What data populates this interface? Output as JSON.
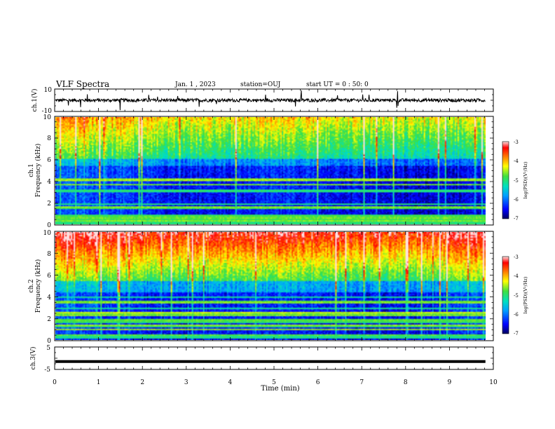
{
  "header": {
    "title": "VLF Spectra",
    "date": "Jan. 1 , 2023",
    "station": "station=OUJ",
    "start": "start UT =  0 : 50: 0"
  },
  "chart_data": [
    {
      "panel": "ch1-waveform",
      "type": "line",
      "ylabel": "ch.1(V)",
      "yticks": [
        "10",
        "-10"
      ],
      "ylim": [
        -10,
        10
      ],
      "description_level": 0,
      "noise_amplitude": 1.5
    },
    {
      "panel": "ch1-spectrogram",
      "type": "heatmap",
      "ylabel_line1": "ch.1",
      "ylabel_line2": "Frequency (kHz)",
      "yticks": [
        "0",
        "2",
        "4",
        "6",
        "8",
        "10"
      ],
      "ylim": [
        0,
        10
      ],
      "colorbar": {
        "label": "log(PSD)(V²/Hz)",
        "ticks": [
          "-3",
          "-4",
          "-5",
          "-6",
          "-7"
        ],
        "range": [
          -7,
          -3
        ]
      }
    },
    {
      "panel": "ch2-spectrogram",
      "type": "heatmap",
      "ylabel_line1": "ch.2",
      "ylabel_line2": "Frequency (kHz)",
      "yticks": [
        "0",
        "2",
        "4",
        "6",
        "8",
        "10"
      ],
      "ylim": [
        0,
        10
      ],
      "colorbar": {
        "label": "log(PSD)(V²/Hz)",
        "ticks": [
          "-3",
          "-4",
          "-5",
          "-6",
          "-7"
        ],
        "range": [
          -7,
          -3
        ]
      }
    },
    {
      "panel": "ch3-waveform",
      "type": "line",
      "ylabel": "ch.3(V)",
      "yticks": [
        "5",
        "0",
        "-5"
      ],
      "ylim": [
        -5,
        5
      ],
      "constant_level": -1.5
    }
  ],
  "xaxis": {
    "label": "Time (min)",
    "ticks": [
      "0",
      "1",
      "2",
      "3",
      "4",
      "5",
      "6",
      "7",
      "8",
      "9",
      "10"
    ],
    "range": [
      0,
      10
    ],
    "data_end": 9.82
  },
  "colors": {
    "scale": [
      "#000080",
      "#0000ff",
      "#00a0ff",
      "#00e0c0",
      "#40e040",
      "#c0ff00",
      "#ffff00",
      "#ff8000",
      "#ff0000",
      "#ffffff"
    ]
  }
}
